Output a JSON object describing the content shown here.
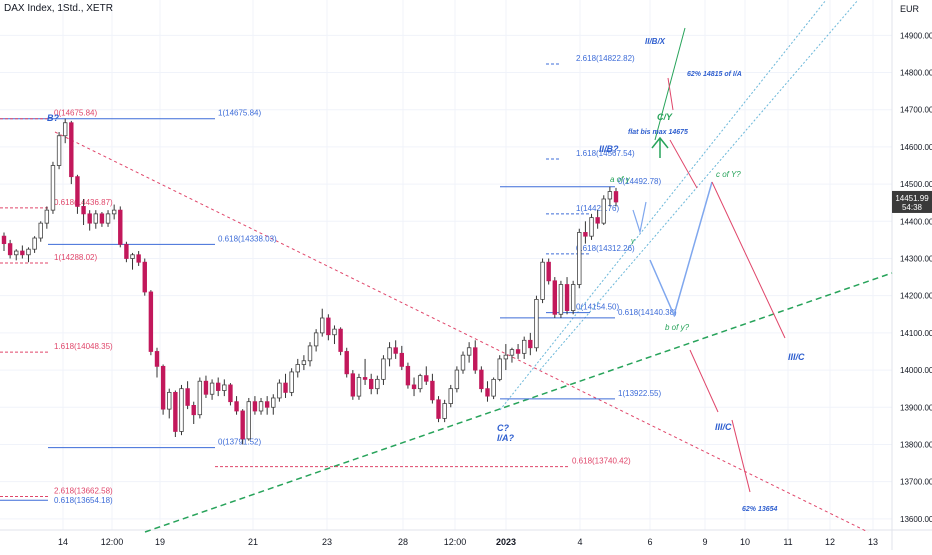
{
  "header": {
    "title": "DAX Index, 1Std., XETR",
    "currency": "EUR"
  },
  "colors": {
    "bull": "#ffffff",
    "bear": "#c2185b",
    "wick": "#333333",
    "fib_blue": "#3d6cd8",
    "fib_red": "#e0466a",
    "blue_text": "#2f5fcf",
    "green": "#27a35a",
    "label_bg": "#3a3a3a"
  },
  "price_readout": {
    "price": "14451.99",
    "countdown": "54:38"
  },
  "chart_data": {
    "type": "candlestick",
    "title": "DAX Index, 1Std., XETR",
    "ylabel": "EUR",
    "ylim": [
      13570,
      14995
    ],
    "yticks": [
      13600,
      13700,
      13800,
      13900,
      14000,
      14100,
      14200,
      14300,
      14400,
      14500,
      14600,
      14700,
      14800,
      14900
    ],
    "xtick_labels": [
      "14",
      "12:00",
      "19",
      "21",
      "23",
      "28",
      "12:00",
      "2023",
      "4",
      "6",
      "9",
      "10",
      "11",
      "12",
      "13"
    ],
    "candles": [
      [
        14360,
        14370,
        14320,
        14340
      ],
      [
        14340,
        14350,
        14300,
        14310
      ],
      [
        14310,
        14325,
        14295,
        14320
      ],
      [
        14320,
        14335,
        14300,
        14310
      ],
      [
        14310,
        14330,
        14290,
        14325
      ],
      [
        14325,
        14360,
        14315,
        14355
      ],
      [
        14355,
        14400,
        14345,
        14395
      ],
      [
        14395,
        14440,
        14380,
        14430
      ],
      [
        14430,
        14560,
        14420,
        14550
      ],
      [
        14550,
        14640,
        14540,
        14630
      ],
      [
        14630,
        14676,
        14610,
        14665
      ],
      [
        14665,
        14670,
        14500,
        14520
      ],
      [
        14520,
        14525,
        14420,
        14440
      ],
      [
        14440,
        14460,
        14390,
        14420
      ],
      [
        14420,
        14430,
        14375,
        14395
      ],
      [
        14395,
        14430,
        14380,
        14420
      ],
      [
        14420,
        14425,
        14385,
        14395
      ],
      [
        14395,
        14430,
        14385,
        14420
      ],
      [
        14420,
        14445,
        14405,
        14430
      ],
      [
        14430,
        14440,
        14330,
        14338
      ],
      [
        14338,
        14345,
        14290,
        14300
      ],
      [
        14300,
        14315,
        14270,
        14310
      ],
      [
        14310,
        14320,
        14280,
        14290
      ],
      [
        14290,
        14300,
        14200,
        14210
      ],
      [
        14210,
        14215,
        14040,
        14050
      ],
      [
        14050,
        14060,
        13980,
        14010
      ],
      [
        14010,
        14015,
        13880,
        13895
      ],
      [
        13895,
        13950,
        13870,
        13940
      ],
      [
        13940,
        13945,
        13820,
        13835
      ],
      [
        13835,
        13960,
        13825,
        13950
      ],
      [
        13950,
        13970,
        13895,
        13905
      ],
      [
        13905,
        13915,
        13855,
        13880
      ],
      [
        13880,
        13980,
        13870,
        13970
      ],
      [
        13970,
        13985,
        13925,
        13935
      ],
      [
        13935,
        13975,
        13920,
        13965
      ],
      [
        13965,
        13980,
        13930,
        13945
      ],
      [
        13945,
        13975,
        13930,
        13960
      ],
      [
        13960,
        13965,
        13905,
        13915
      ],
      [
        13915,
        13930,
        13880,
        13890
      ],
      [
        13890,
        13895,
        13800,
        13815
      ],
      [
        13815,
        13925,
        13810,
        13915
      ],
      [
        13915,
        13930,
        13880,
        13890
      ],
      [
        13890,
        13925,
        13880,
        13915
      ],
      [
        13915,
        13930,
        13880,
        13900
      ],
      [
        13900,
        13935,
        13880,
        13925
      ],
      [
        13925,
        13975,
        13915,
        13965
      ],
      [
        13965,
        13990,
        13925,
        13940
      ],
      [
        13940,
        14005,
        13930,
        13995
      ],
      [
        13995,
        14030,
        13980,
        14015
      ],
      [
        14015,
        14040,
        14000,
        14025
      ],
      [
        14025,
        14075,
        14010,
        14065
      ],
      [
        14065,
        14110,
        14050,
        14100
      ],
      [
        14100,
        14165,
        14090,
        14140
      ],
      [
        14140,
        14150,
        14080,
        14095
      ],
      [
        14095,
        14120,
        14070,
        14110
      ],
      [
        14110,
        14115,
        14040,
        14050
      ],
      [
        14050,
        14060,
        13980,
        13990
      ],
      [
        13990,
        14000,
        13920,
        13930
      ],
      [
        13930,
        13990,
        13920,
        13980
      ],
      [
        13980,
        14030,
        13960,
        13975
      ],
      [
        13975,
        13990,
        13935,
        13950
      ],
      [
        13950,
        13985,
        13935,
        13975
      ],
      [
        13975,
        14040,
        13960,
        14030
      ],
      [
        14030,
        14075,
        14010,
        14060
      ],
      [
        14060,
        14080,
        14030,
        14045
      ],
      [
        14045,
        14065,
        14000,
        14010
      ],
      [
        14010,
        14020,
        13950,
        13960
      ],
      [
        13960,
        13980,
        13930,
        13950
      ],
      [
        13950,
        13990,
        13940,
        13985
      ],
      [
        13985,
        14010,
        13960,
        13970
      ],
      [
        13970,
        13990,
        13910,
        13920
      ],
      [
        13920,
        13930,
        13860,
        13870
      ],
      [
        13870,
        13920,
        13860,
        13910
      ],
      [
        13910,
        13960,
        13900,
        13950
      ],
      [
        13950,
        14010,
        13940,
        14000
      ],
      [
        14000,
        14050,
        13990,
        14040
      ],
      [
        14040,
        14075,
        14020,
        14060
      ],
      [
        14060,
        14080,
        13990,
        14000
      ],
      [
        14000,
        14010,
        13940,
        13950
      ],
      [
        13950,
        13970,
        13915,
        13930
      ],
      [
        13930,
        13980,
        13922,
        13975
      ],
      [
        13975,
        14040,
        13970,
        14030
      ],
      [
        14030,
        14070,
        14000,
        14040
      ],
      [
        14040,
        14060,
        14020,
        14055
      ],
      [
        14055,
        14070,
        14030,
        14045
      ],
      [
        14045,
        14090,
        14030,
        14080
      ],
      [
        14080,
        14100,
        14040,
        14060
      ],
      [
        14060,
        14200,
        14050,
        14190
      ],
      [
        14190,
        14300,
        14180,
        14290
      ],
      [
        14290,
        14300,
        14230,
        14240
      ],
      [
        14240,
        14250,
        14140,
        14150
      ],
      [
        14150,
        14240,
        14140,
        14230
      ],
      [
        14230,
        14250,
        14150,
        14160
      ],
      [
        14160,
        14240,
        14150,
        14230
      ],
      [
        14230,
        14380,
        14220,
        14370
      ],
      [
        14370,
        14400,
        14340,
        14360
      ],
      [
        14360,
        14420,
        14350,
        14410
      ],
      [
        14410,
        14430,
        14380,
        14395
      ],
      [
        14395,
        14470,
        14390,
        14460
      ],
      [
        14460,
        14493,
        14440,
        14480
      ],
      [
        14480,
        14490,
        14440,
        14452
      ]
    ],
    "series": [
      {
        "kind": "hline",
        "value": 14675.84,
        "label": "1(14675.84)",
        "color": "blue",
        "from": 0.235,
        "to": 0.97
      },
      {
        "kind": "hline",
        "value": 14675.84,
        "label": "0(14675.84)",
        "color": "red",
        "from": 0.0,
        "to": 0.235
      },
      {
        "kind": "hline",
        "value": 14436,
        "label": "0.618(14436.87)",
        "color": "red",
        "from": 0.0,
        "to": 0.235
      },
      {
        "kind": "hline",
        "value": 14338.03,
        "label": "0.618(14338.03)",
        "color": "blue",
        "from": 0.235,
        "to": 0.97
      },
      {
        "kind": "hline",
        "value": 14288.02,
        "label": "1(14288.02)",
        "color": "red",
        "from": 0.0,
        "to": 0.235
      },
      {
        "kind": "hline",
        "value": 14048.35,
        "label": "1.618(14048.35)",
        "color": "red",
        "from": 0.0,
        "to": 0.235
      },
      {
        "kind": "hline",
        "value": 13791.52,
        "label": "0(13791.52)",
        "color": "blue",
        "from": 0.235,
        "to": 0.97
      },
      {
        "kind": "hline",
        "value": 13740.42,
        "label": "0.618(13740.42)",
        "color": "red",
        "from": 0.235,
        "to": 0.97
      },
      {
        "kind": "hline",
        "value": 13660,
        "label": "2.618(13662.58)",
        "color": "red",
        "from": 0.0,
        "to": 0.235
      },
      {
        "kind": "hline",
        "value": 13650,
        "label": "0.618(13654.18)",
        "color": "blue",
        "from": 0.0,
        "to": 0.235
      },
      {
        "kind": "hline",
        "value": 14822.82,
        "label": "2.618(14822.82)",
        "color": "blue",
        "from": 0.0,
        "to": 0.97
      },
      {
        "kind": "hline",
        "value": 14567.54,
        "label": "1.618(14567.54)",
        "color": "blue",
        "from": 0.0,
        "to": 0.97
      },
      {
        "kind": "hline",
        "value": 14492.78,
        "label": "0(14492.78)",
        "color": "blue",
        "from": 0.0,
        "to": 0.97
      },
      {
        "kind": "hline",
        "value": 14420,
        "label": "1(14422.76)",
        "color": "blue",
        "from": 0.0,
        "to": 0.97
      },
      {
        "kind": "hline",
        "value": 14312.26,
        "label": "0.618(14312.26)",
        "color": "blue",
        "from": 0.0,
        "to": 0.97
      },
      {
        "kind": "hline",
        "value": 14154.5,
        "label": "0(14154.50)",
        "color": "blue",
        "from": 0.0,
        "to": 0.97
      },
      {
        "kind": "hline",
        "value": 14140.38,
        "label": "0.618(14140.38)",
        "color": "blue",
        "from": 0.0,
        "to": 0.97
      },
      {
        "kind": "hline",
        "value": 13922.55,
        "label": "1(13922.55)",
        "color": "blue",
        "from": 0.0,
        "to": 0.97
      }
    ],
    "annotations": [
      {
        "text": "B?",
        "color": "blue"
      },
      {
        "text": "C?",
        "color": "blue"
      },
      {
        "text": "I/A?",
        "color": "blue"
      },
      {
        "text": "II/B?",
        "color": "blue"
      },
      {
        "text": "a of y",
        "color": "green"
      },
      {
        "text": "b of y?",
        "color": "green"
      },
      {
        "text": "c of Y?",
        "color": "green"
      },
      {
        "text": "C/Y",
        "color": "green"
      },
      {
        "text": "flat bis max 14675",
        "color": "blue"
      },
      {
        "text": "II/B/X",
        "color": "blue"
      },
      {
        "text": "62% 14815 of I/A",
        "color": "blue"
      },
      {
        "text": "III/C",
        "color": "blue"
      },
      {
        "text": "III/C",
        "color": "blue"
      },
      {
        "text": "62% 13654",
        "color": "blue"
      },
      {
        "text": "y",
        "color": "green"
      }
    ]
  }
}
